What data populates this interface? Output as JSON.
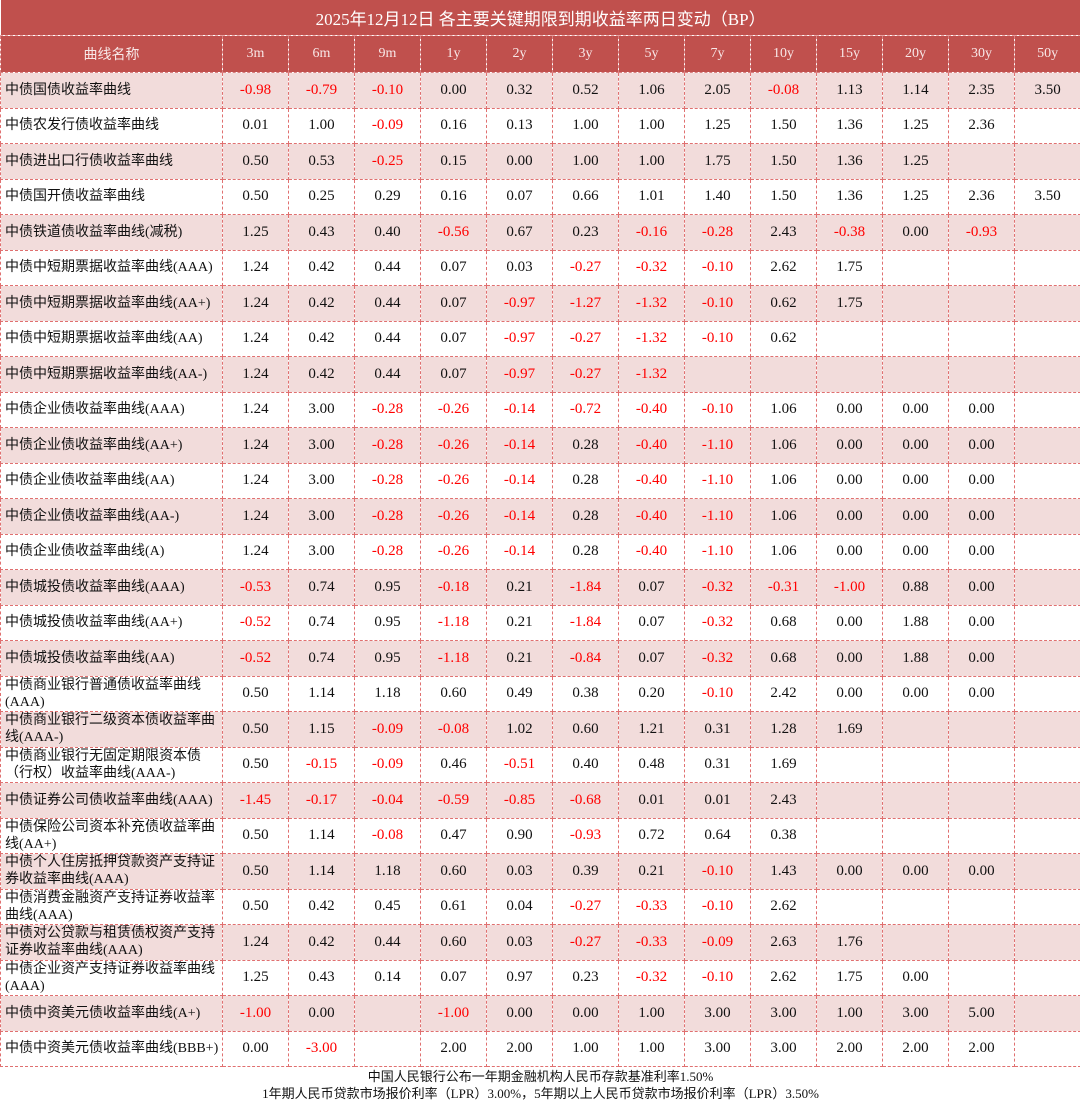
{
  "title": "2025年12月12日  各主要关键期限到期收益率两日变动（BP）",
  "columns": [
    "曲线名称",
    "3m",
    "6m",
    "9m",
    "1y",
    "2y",
    "3y",
    "5y",
    "7y",
    "10y",
    "15y",
    "20y",
    "30y",
    "50y"
  ],
  "colors": {
    "header_bg": "#c0504d",
    "row_alt": "#f2dcdb",
    "negative": "#ff0000",
    "border": "#e07070"
  },
  "rows": [
    {
      "name": "中债国债收益率曲线",
      "values": [
        "-0.98",
        "-0.79",
        "-0.10",
        "0.00",
        "0.32",
        "0.52",
        "1.06",
        "2.05",
        "-0.08",
        "1.13",
        "1.14",
        "2.35",
        "3.50"
      ]
    },
    {
      "name": "中债农发行债收益率曲线",
      "values": [
        "0.01",
        "1.00",
        "-0.09",
        "0.16",
        "0.13",
        "1.00",
        "1.00",
        "1.25",
        "1.50",
        "1.36",
        "1.25",
        "2.36",
        ""
      ]
    },
    {
      "name": "中债进出口行债收益率曲线",
      "values": [
        "0.50",
        "0.53",
        "-0.25",
        "0.15",
        "0.00",
        "1.00",
        "1.00",
        "1.75",
        "1.50",
        "1.36",
        "1.25",
        "",
        ""
      ]
    },
    {
      "name": "中债国开债收益率曲线",
      "values": [
        "0.50",
        "0.25",
        "0.29",
        "0.16",
        "0.07",
        "0.66",
        "1.01",
        "1.40",
        "1.50",
        "1.36",
        "1.25",
        "2.36",
        "3.50"
      ]
    },
    {
      "name": "中债铁道债收益率曲线(减税)",
      "values": [
        "1.25",
        "0.43",
        "0.40",
        "-0.56",
        "0.67",
        "0.23",
        "-0.16",
        "-0.28",
        "2.43",
        "-0.38",
        "0.00",
        "-0.93",
        ""
      ]
    },
    {
      "name": "中债中短期票据收益率曲线(AAA)",
      "values": [
        "1.24",
        "0.42",
        "0.44",
        "0.07",
        "0.03",
        "-0.27",
        "-0.32",
        "-0.10",
        "2.62",
        "1.75",
        "",
        "",
        ""
      ]
    },
    {
      "name": "中债中短期票据收益率曲线(AA+)",
      "values": [
        "1.24",
        "0.42",
        "0.44",
        "0.07",
        "-0.97",
        "-1.27",
        "-1.32",
        "-0.10",
        "0.62",
        "1.75",
        "",
        "",
        ""
      ]
    },
    {
      "name": "中债中短期票据收益率曲线(AA)",
      "values": [
        "1.24",
        "0.42",
        "0.44",
        "0.07",
        "-0.97",
        "-0.27",
        "-1.32",
        "-0.10",
        "0.62",
        "",
        "",
        "",
        ""
      ]
    },
    {
      "name": "中债中短期票据收益率曲线(AA-)",
      "values": [
        "1.24",
        "0.42",
        "0.44",
        "0.07",
        "-0.97",
        "-0.27",
        "-1.32",
        "",
        "",
        "",
        "",
        "",
        ""
      ]
    },
    {
      "name": "中债企业债收益率曲线(AAA)",
      "values": [
        "1.24",
        "3.00",
        "-0.28",
        "-0.26",
        "-0.14",
        "-0.72",
        "-0.40",
        "-0.10",
        "1.06",
        "0.00",
        "0.00",
        "0.00",
        ""
      ]
    },
    {
      "name": "中债企业债收益率曲线(AA+)",
      "values": [
        "1.24",
        "3.00",
        "-0.28",
        "-0.26",
        "-0.14",
        "0.28",
        "-0.40",
        "-1.10",
        "1.06",
        "0.00",
        "0.00",
        "0.00",
        ""
      ]
    },
    {
      "name": "中债企业债收益率曲线(AA)",
      "values": [
        "1.24",
        "3.00",
        "-0.28",
        "-0.26",
        "-0.14",
        "0.28",
        "-0.40",
        "-1.10",
        "1.06",
        "0.00",
        "0.00",
        "0.00",
        ""
      ]
    },
    {
      "name": "中债企业债收益率曲线(AA-)",
      "values": [
        "1.24",
        "3.00",
        "-0.28",
        "-0.26",
        "-0.14",
        "0.28",
        "-0.40",
        "-1.10",
        "1.06",
        "0.00",
        "0.00",
        "0.00",
        ""
      ]
    },
    {
      "name": "中债企业债收益率曲线(A)",
      "values": [
        "1.24",
        "3.00",
        "-0.28",
        "-0.26",
        "-0.14",
        "0.28",
        "-0.40",
        "-1.10",
        "1.06",
        "0.00",
        "0.00",
        "0.00",
        ""
      ]
    },
    {
      "name": "中债城投债收益率曲线(AAA)",
      "values": [
        "-0.53",
        "0.74",
        "0.95",
        "-0.18",
        "0.21",
        "-1.84",
        "0.07",
        "-0.32",
        "-0.31",
        "-1.00",
        "0.88",
        "0.00",
        ""
      ]
    },
    {
      "name": "中债城投债收益率曲线(AA+)",
      "values": [
        "-0.52",
        "0.74",
        "0.95",
        "-1.18",
        "0.21",
        "-1.84",
        "0.07",
        "-0.32",
        "0.68",
        "0.00",
        "1.88",
        "0.00",
        ""
      ]
    },
    {
      "name": "中债城投债收益率曲线(AA)",
      "values": [
        "-0.52",
        "0.74",
        "0.95",
        "-1.18",
        "0.21",
        "-0.84",
        "0.07",
        "-0.32",
        "0.68",
        "0.00",
        "1.88",
        "0.00",
        ""
      ]
    },
    {
      "name": "中债商业银行普通债收益率曲线(AAA)",
      "values": [
        "0.50",
        "1.14",
        "1.18",
        "0.60",
        "0.49",
        "0.38",
        "0.20",
        "-0.10",
        "2.42",
        "0.00",
        "0.00",
        "0.00",
        ""
      ]
    },
    {
      "name": "中债商业银行二级资本债收益率曲线(AAA-)",
      "values": [
        "0.50",
        "1.15",
        "-0.09",
        "-0.08",
        "1.02",
        "0.60",
        "1.21",
        "0.31",
        "1.28",
        "1.69",
        "",
        "",
        ""
      ]
    },
    {
      "name": "中债商业银行无固定期限资本债（行权）收益率曲线(AAA-)",
      "values": [
        "0.50",
        "-0.15",
        "-0.09",
        "0.46",
        "-0.51",
        "0.40",
        "0.48",
        "0.31",
        "1.69",
        "",
        "",
        "",
        ""
      ]
    },
    {
      "name": "中债证券公司债收益率曲线(AAA)",
      "values": [
        "-1.45",
        "-0.17",
        "-0.04",
        "-0.59",
        "-0.85",
        "-0.68",
        "0.01",
        "0.01",
        "2.43",
        "",
        "",
        "",
        ""
      ]
    },
    {
      "name": "中债保险公司资本补充债收益率曲线(AA+)",
      "values": [
        "0.50",
        "1.14",
        "-0.08",
        "0.47",
        "0.90",
        "-0.93",
        "0.72",
        "0.64",
        "0.38",
        "",
        "",
        "",
        ""
      ]
    },
    {
      "name": "中债个人住房抵押贷款资产支持证券收益率曲线(AAA)",
      "values": [
        "0.50",
        "1.14",
        "1.18",
        "0.60",
        "0.03",
        "0.39",
        "0.21",
        "-0.10",
        "1.43",
        "0.00",
        "0.00",
        "0.00",
        ""
      ]
    },
    {
      "name": "中债消费金融资产支持证券收益率曲线(AAA)",
      "values": [
        "0.50",
        "0.42",
        "0.45",
        "0.61",
        "0.04",
        "-0.27",
        "-0.33",
        "-0.10",
        "2.62",
        "",
        "",
        "",
        ""
      ]
    },
    {
      "name": "中债对公贷款与租赁债权资产支持证券收益率曲线(AAA)",
      "values": [
        "1.24",
        "0.42",
        "0.44",
        "0.60",
        "0.03",
        "-0.27",
        "-0.33",
        "-0.09",
        "2.63",
        "1.76",
        "",
        "",
        ""
      ]
    },
    {
      "name": "中债企业资产支持证券收益率曲线(AAA)",
      "values": [
        "1.25",
        "0.43",
        "0.14",
        "0.07",
        "0.97",
        "0.23",
        "-0.32",
        "-0.10",
        "2.62",
        "1.75",
        "0.00",
        "",
        ""
      ]
    },
    {
      "name": "中债中资美元债收益率曲线(A+)",
      "values": [
        "-1.00",
        "0.00",
        "",
        "-1.00",
        "0.00",
        "0.00",
        "1.00",
        "3.00",
        "3.00",
        "1.00",
        "3.00",
        "5.00",
        ""
      ]
    },
    {
      "name": "中债中资美元债收益率曲线(BBB+)",
      "values": [
        "0.00",
        "-3.00",
        "",
        "2.00",
        "2.00",
        "1.00",
        "1.00",
        "3.00",
        "3.00",
        "2.00",
        "2.00",
        "2.00",
        ""
      ]
    }
  ],
  "footer": {
    "line1": "中国人民银行公布一年期金融机构人民币存款基准利率1.50%",
    "line2": "1年期人民币贷款市场报价利率（LPR）3.00%，5年期以上人民币贷款市场报价利率（LPR）3.50%"
  }
}
